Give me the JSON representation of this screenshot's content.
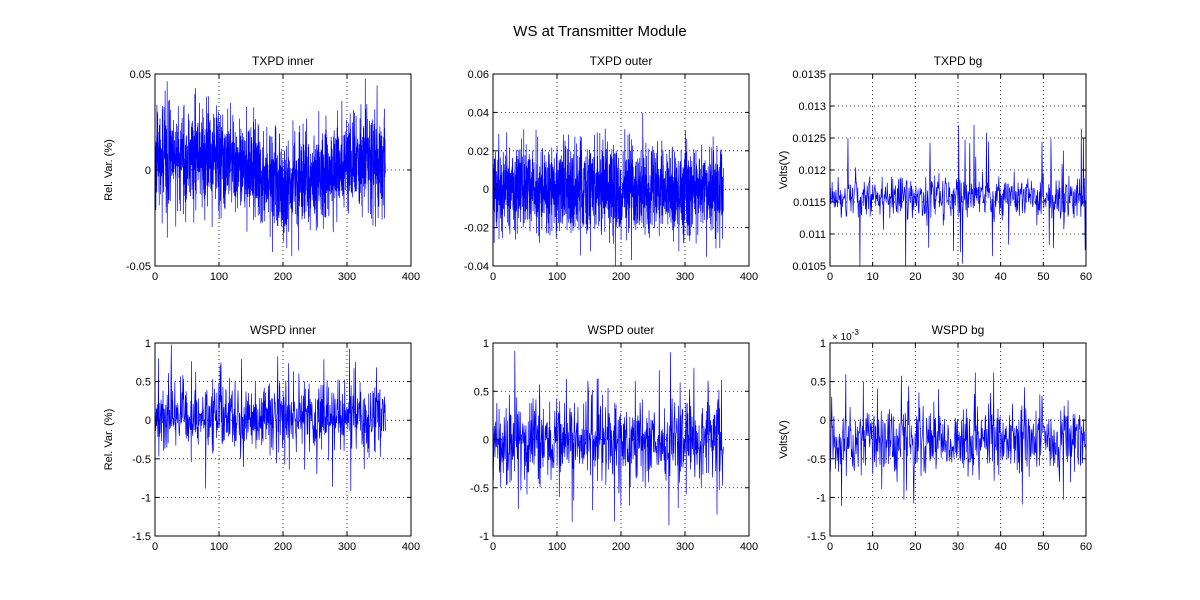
{
  "figure": {
    "title": "WS at Transmitter Module",
    "series_color": "#0000ff"
  },
  "chart_data": [
    {
      "type": "line",
      "title": "TXPD inner",
      "xlabel": "",
      "ylabel": "Rel. Var. (%)",
      "xlim": [
        0,
        400
      ],
      "ylim": [
        -0.05,
        0.05
      ],
      "xticks": [
        0,
        100,
        200,
        300,
        400
      ],
      "xtick_labels": [
        "0",
        "100",
        "200",
        "300",
        "400"
      ],
      "yticks": [
        -0.05,
        0,
        0.05
      ],
      "ytick_labels": [
        "-0.05",
        "0",
        "0.05"
      ],
      "grid": true,
      "exponent_label": "",
      "series": [
        {
          "x_range": [
            0,
            360
          ],
          "n": 1800,
          "amp": 0.012,
          "spike": 0.035,
          "trend": [
            [
              0,
              0.006
            ],
            [
              50,
              0.008
            ],
            [
              100,
              0.004
            ],
            [
              150,
              0.0
            ],
            [
              200,
              -0.008
            ],
            [
              250,
              -0.004
            ],
            [
              300,
              0.004
            ],
            [
              360,
              0.005
            ]
          ]
        }
      ]
    },
    {
      "type": "line",
      "title": "TXPD outer",
      "xlabel": "",
      "ylabel": "",
      "xlim": [
        0,
        400
      ],
      "ylim": [
        -0.04,
        0.06
      ],
      "xticks": [
        0,
        100,
        200,
        300,
        400
      ],
      "xtick_labels": [
        "0",
        "100",
        "200",
        "300",
        "400"
      ],
      "yticks": [
        -0.04,
        -0.02,
        0,
        0.02,
        0.04,
        0.06
      ],
      "ytick_labels": [
        "-0.04",
        "-0.02",
        "0",
        "0.02",
        "0.04",
        "0.06"
      ],
      "grid": true,
      "exponent_label": "",
      "series": [
        {
          "x_range": [
            0,
            360
          ],
          "n": 1800,
          "amp": 0.011,
          "spike": 0.03,
          "trend": [
            [
              0,
              0.002
            ],
            [
              100,
              0.001
            ],
            [
              200,
              -0.001
            ],
            [
              300,
              0.0
            ],
            [
              360,
              -0.002
            ]
          ]
        }
      ]
    },
    {
      "type": "line",
      "title": "TXPD bg",
      "xlabel": "",
      "ylabel": "Volts(V)",
      "xlim": [
        0,
        60
      ],
      "ylim": [
        0.0105,
        0.0135
      ],
      "xticks": [
        0,
        10,
        20,
        30,
        40,
        50,
        60
      ],
      "xtick_labels": [
        "0",
        "10",
        "20",
        "30",
        "40",
        "50",
        "60"
      ],
      "yticks": [
        0.0105,
        0.011,
        0.0115,
        0.012,
        0.0125,
        0.013,
        0.0135
      ],
      "ytick_labels": [
        "0.0105",
        "0.011",
        "0.0115",
        "0.012",
        "0.0125",
        "0.013",
        "0.0135"
      ],
      "grid": true,
      "exponent_label": "",
      "series": [
        {
          "x_range": [
            0,
            60
          ],
          "n": 600,
          "amp": 0.00018,
          "spike": 0.0012,
          "trend": [
            [
              0,
              0.01158
            ],
            [
              60,
              0.01158
            ]
          ]
        }
      ]
    },
    {
      "type": "line",
      "title": "WSPD inner",
      "xlabel": "",
      "ylabel": "Rel. Var. (%)",
      "xlim": [
        0,
        400
      ],
      "ylim": [
        -1.5,
        1
      ],
      "xticks": [
        0,
        100,
        200,
        300,
        400
      ],
      "xtick_labels": [
        "0",
        "100",
        "200",
        "300",
        "400"
      ],
      "yticks": [
        -1.5,
        -1,
        -0.5,
        0,
        0.5,
        1
      ],
      "ytick_labels": [
        "-1.5",
        "-1",
        "-0.5",
        "0",
        "0.5",
        "1"
      ],
      "grid": true,
      "exponent_label": "",
      "series": [
        {
          "x_range": [
            0,
            360
          ],
          "n": 720,
          "amp": 0.22,
          "spike": 0.95,
          "trend": [
            [
              0,
              0.05
            ],
            [
              360,
              0.0
            ]
          ]
        }
      ]
    },
    {
      "type": "line",
      "title": "WSPD outer",
      "xlabel": "",
      "ylabel": "",
      "xlim": [
        0,
        400
      ],
      "ylim": [
        -1,
        1
      ],
      "xticks": [
        0,
        100,
        200,
        300,
        400
      ],
      "xtick_labels": [
        "0",
        "100",
        "200",
        "300",
        "400"
      ],
      "yticks": [
        -1,
        -0.5,
        0,
        0.5,
        1
      ],
      "ytick_labels": [
        "-1",
        "-0.5",
        "0",
        "0.5",
        "1"
      ],
      "grid": true,
      "exponent_label": "",
      "series": [
        {
          "x_range": [
            0,
            360
          ],
          "n": 720,
          "amp": 0.22,
          "spike": 0.95,
          "trend": [
            [
              0,
              0.0
            ],
            [
              360,
              0.0
            ]
          ]
        }
      ]
    },
    {
      "type": "line",
      "title": "WSPD bg",
      "xlabel": "",
      "ylabel": "Volts(V)",
      "xlim": [
        0,
        60
      ],
      "ylim": [
        -1.5,
        1
      ],
      "xticks": [
        0,
        10,
        20,
        30,
        40,
        50,
        60
      ],
      "xtick_labels": [
        "0",
        "10",
        "20",
        "30",
        "40",
        "50",
        "60"
      ],
      "yticks": [
        -1.5,
        -1,
        -0.5,
        0,
        0.5,
        1
      ],
      "ytick_labels": [
        "-1.5",
        "-1",
        "-0.5",
        "0",
        "0.5",
        "1"
      ],
      "grid": true,
      "exponent_label": "× 10",
      "exponent_power": "-3",
      "series": [
        {
          "x_range": [
            0,
            60
          ],
          "n": 600,
          "amp": 0.22,
          "spike": 0.9,
          "trend": [
            [
              0,
              -0.25
            ],
            [
              60,
              -0.25
            ]
          ]
        }
      ]
    }
  ]
}
